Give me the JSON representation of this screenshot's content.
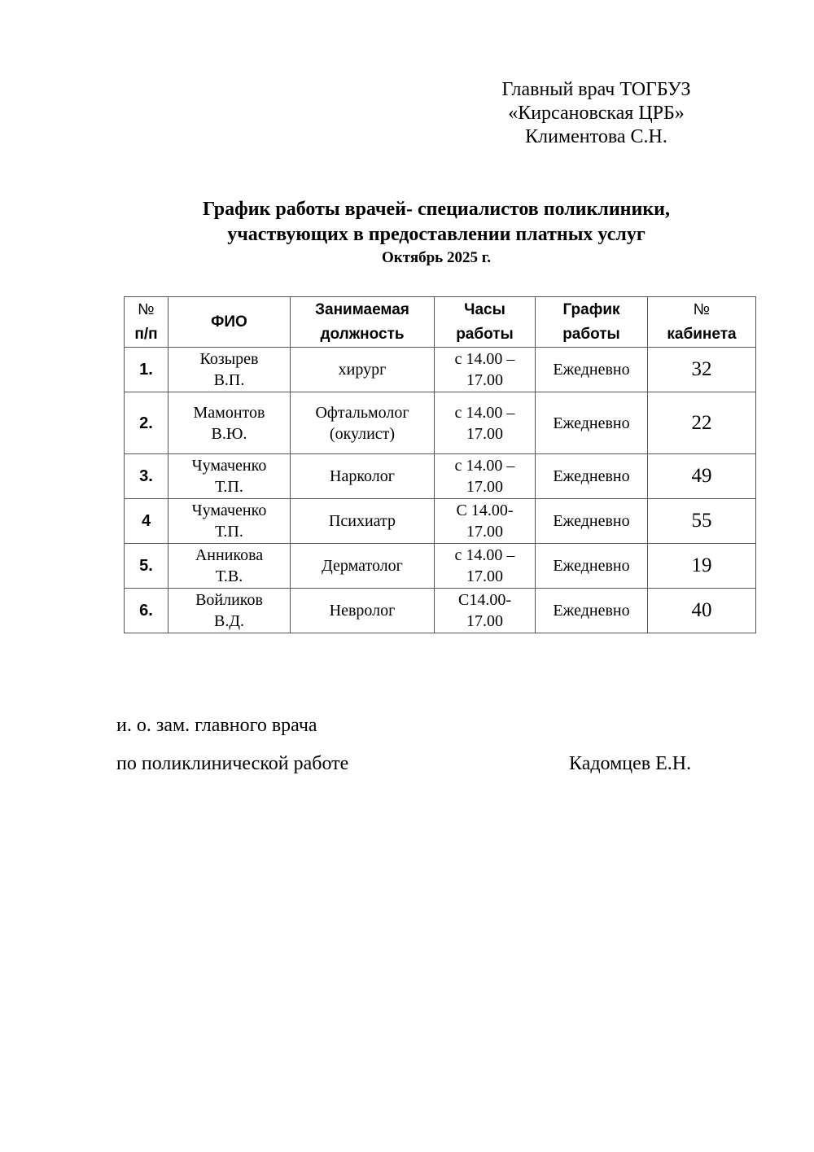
{
  "approval": {
    "lines": [
      "Главный врач ТОГБУЗ",
      "«Кирсановская ЦРБ»",
      "Климентова С.Н."
    ]
  },
  "title": {
    "line1": "График работы врачей- специалистов поликлиники,",
    "line2": "участвующих в предоставлении платных услуг",
    "month": "Октябрь  2025 г."
  },
  "table": {
    "headers": {
      "num_sym": "№",
      "num_label": "п/п",
      "name": "ФИО",
      "position_1": "Занимаемая",
      "position_2": "должность",
      "hours_1": "Часы",
      "hours_2": "работы",
      "schedule_1": "График",
      "schedule_2": "работы",
      "cabinet_sym": "№",
      "cabinet_label": "кабинета"
    },
    "rows": [
      {
        "num": "1.",
        "name1": "Козырев",
        "name2": "В.П.",
        "pos1": "хирург",
        "pos2": "",
        "hours1": "с 14.00 –",
        "hours2": "17.00",
        "schedule": "Ежедневно",
        "cabinet": "32"
      },
      {
        "num": "2.",
        "name1": "Мамонтов",
        "name2": "В.Ю.",
        "pos1": "Офтальмолог",
        "pos2": "(окулист)",
        "hours1": "с 14.00 –",
        "hours2": "17.00",
        "schedule": "Ежедневно",
        "cabinet": "22"
      },
      {
        "num": "3.",
        "name1": "Чумаченко",
        "name2": "Т.П.",
        "pos1": "Нарколог",
        "pos2": "",
        "hours1": "с 14.00 –",
        "hours2": "17.00",
        "schedule": "Ежедневно",
        "cabinet": "49"
      },
      {
        "num": "4",
        "name1": "Чумаченко",
        "name2": "Т.П.",
        "pos1": "Психиатр",
        "pos2": "",
        "hours1": "С 14.00-",
        "hours2": "17.00",
        "schedule": "Ежедневно",
        "cabinet": "55"
      },
      {
        "num": "5.",
        "name1": "Анникова",
        "name2": "Т.В.",
        "pos1": "Дерматолог",
        "pos2": "",
        "hours1": "с 14.00 –",
        "hours2": "17.00",
        "schedule": "Ежедневно",
        "cabinet": "19"
      },
      {
        "num": "6.",
        "name1": "Войликов",
        "name2": "В.Д.",
        "pos1": "Невролог",
        "pos2": "",
        "hours1": "С14.00-",
        "hours2": "17.00",
        "schedule": "Ежедневно",
        "cabinet": "40"
      }
    ]
  },
  "signature": {
    "line1": "и. о. зам. главного врача",
    "line2": "по поликлинической работе",
    "name": "Кадомцев Е.Н."
  }
}
